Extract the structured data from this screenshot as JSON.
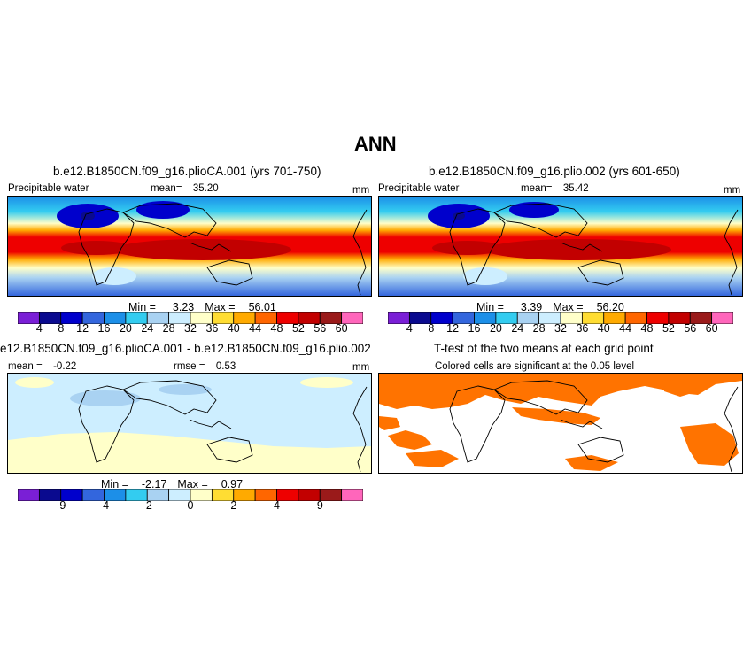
{
  "figure_title": "ANN",
  "colors": {
    "precip_scale": [
      "#7a1fd6",
      "#0a0a8f",
      "#0000cc",
      "#3366dd",
      "#1c8fe8",
      "#33ccf0",
      "#a9d2f2",
      "#cdeeff",
      "#ffffc9",
      "#ffdd33",
      "#ffaa00",
      "#ff6600",
      "#ee0000",
      "#c20000",
      "#9a1a1a",
      "#ff66bb"
    ],
    "diff_scale": [
      "#7a1fd6",
      "#0a0a8f",
      "#0000cc",
      "#3366dd",
      "#1c8fe8",
      "#33ccf0",
      "#a9d2f2",
      "#cdeeff",
      "#ffffc9",
      "#ffdd33",
      "#ffaa00",
      "#ff6600",
      "#ee0000",
      "#c20000",
      "#9a1a1a",
      "#ff66bb"
    ],
    "significance": "#ff7300",
    "diff_neg_small": "#cdeeff",
    "diff_pos_small": "#ffffc9",
    "diff_neg_mid": "#a9d2f2"
  },
  "chart_data": [
    {
      "type": "heatmap",
      "panel": "top-left",
      "title": "b.e12.B1850CN.f09_g16.plioCA.001 (yrs 701-750)",
      "variable": "Precipitable water",
      "units": "mm",
      "mean_label": "mean=",
      "mean": "35.20",
      "min_label": "Min =",
      "min": "3.23",
      "max_label": "Max =",
      "max": "56.01",
      "colorbar_ticks": [
        "4",
        "8",
        "12",
        "16",
        "20",
        "24",
        "28",
        "32",
        "36",
        "40",
        "44",
        "48",
        "52",
        "56",
        "60"
      ]
    },
    {
      "type": "heatmap",
      "panel": "top-right",
      "title": "b.e12.B1850CN.f09_g16.plio.002 (yrs 601-650)",
      "variable": "Precipitable water",
      "units": "mm",
      "mean_label": "mean=",
      "mean": "35.42",
      "min_label": "Min =",
      "min": "3.39",
      "max_label": "Max =",
      "max": "56.20",
      "colorbar_ticks": [
        "4",
        "8",
        "12",
        "16",
        "20",
        "24",
        "28",
        "32",
        "36",
        "40",
        "44",
        "48",
        "52",
        "56",
        "60"
      ]
    },
    {
      "type": "heatmap",
      "panel": "bottom-left",
      "title": "e12.B1850CN.f09_g16.plioCA.001 - b.e12.B1850CN.f09_g16.plio.002",
      "units": "mm",
      "mean_label": "mean =",
      "mean": "-0.22",
      "rmse_label": "rmse =",
      "rmse": "0.53",
      "min_label": "Min =",
      "min": "-2.17",
      "max_label": "Max =",
      "max": "0.97",
      "colorbar_ticks": [
        "-9",
        "-4",
        "-2",
        "0",
        "2",
        "4",
        "9"
      ]
    },
    {
      "type": "heatmap",
      "panel": "bottom-right",
      "title": "T-test of the two means at each grid point",
      "subtitle": "Colored cells are significant at the 0.05 level"
    }
  ]
}
